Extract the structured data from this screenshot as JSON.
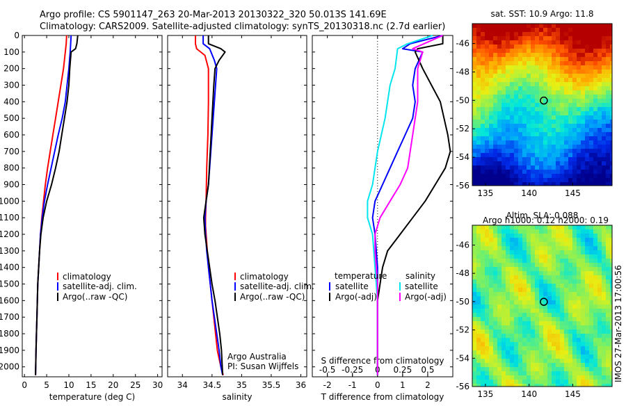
{
  "title_lines": [
    "Argo profile: CS 5901147_263 20-Mar-2013 20130322_320 50.013S 141.69E",
    "Climatology: CARS2009. Satellite-adjusted climatology: synTS_20130318.nc (2.7d earlier)"
  ],
  "colors": {
    "clim": "#ff0000",
    "sat": "#0000ff",
    "argo": "#000000",
    "sal_sat": "#00e5ee",
    "sal_argo": "#ff00ff"
  },
  "depth_axis": {
    "ticks": [
      0,
      100,
      200,
      300,
      400,
      500,
      600,
      700,
      800,
      900,
      1000,
      1100,
      1200,
      1300,
      1400,
      1500,
      1600,
      1700,
      1800,
      1900,
      2000
    ],
    "range": [
      0,
      2060
    ]
  },
  "legend_profiles": [
    "climatology",
    "satellite-adj. clim.",
    "Argo(..raw -QC)"
  ],
  "legend_diff": {
    "temp_title": "temperature",
    "sal_title": "salinity",
    "temp_items": [
      "satellite",
      "Argo(-adj)"
    ],
    "sal_items": [
      "satellite",
      "Argo(-adj)"
    ]
  },
  "credits": [
    "Argo Australia",
    "PI: Susan Wijffels"
  ],
  "imos_stamp": "IMOS 27-Mar-2013 17:00:56",
  "chart_data": [
    {
      "type": "line",
      "id": "temperature",
      "xlabel": "temperature (deg C)",
      "xlim": [
        -0.5,
        31
      ],
      "ylim": [
        2060,
        0
      ],
      "xticks": [
        0,
        5,
        10,
        15,
        20,
        25,
        30
      ],
      "series": [
        {
          "name": "climatology",
          "color": "#ff0000",
          "x": [
            9.5,
            9.4,
            9.2,
            8.8,
            8.2,
            7.6,
            7.0,
            6.4,
            5.8,
            5.2,
            4.7,
            4.3,
            3.9,
            3.6,
            3.4,
            3.2,
            3.0,
            2.9,
            2.8,
            2.7,
            2.6,
            2.5
          ],
          "y": [
            0,
            50,
            100,
            200,
            300,
            400,
            500,
            600,
            700,
            800,
            900,
            1000,
            1100,
            1200,
            1300,
            1400,
            1500,
            1600,
            1700,
            1800,
            1900,
            2050
          ]
        },
        {
          "name": "satellite-adj. clim.",
          "color": "#0000ff",
          "x": [
            10.5,
            10.4,
            10.3,
            10.0,
            9.6,
            9.2,
            8.5,
            7.6,
            6.8,
            6.0,
            5.2,
            4.5,
            4.0,
            3.6,
            3.4,
            3.2,
            3.0,
            2.9,
            2.8,
            2.7,
            2.6,
            2.5
          ],
          "y": [
            0,
            50,
            100,
            200,
            300,
            400,
            500,
            600,
            700,
            800,
            900,
            1000,
            1100,
            1200,
            1300,
            1400,
            1500,
            1600,
            1700,
            1800,
            1900,
            2050
          ]
        },
        {
          "name": "Argo(..raw -QC)",
          "color": "#000000",
          "x": [
            12.0,
            11.8,
            11.5,
            10.5,
            10.2,
            10.0,
            9.6,
            9.0,
            8.4,
            7.8,
            7.0,
            6.1,
            5.0,
            4.2,
            3.7,
            3.4,
            3.2,
            3.0,
            2.9,
            2.8,
            2.7,
            2.6,
            2.5
          ],
          "y": [
            0,
            50,
            80,
            100,
            200,
            300,
            400,
            500,
            600,
            700,
            800,
            900,
            1000,
            1100,
            1200,
            1300,
            1400,
            1500,
            1600,
            1700,
            1800,
            1900,
            2050
          ]
        }
      ]
    },
    {
      "type": "line",
      "id": "salinity",
      "xlabel": "salinity",
      "xlim": [
        33.75,
        36.1
      ],
      "ylim": [
        2060,
        0
      ],
      "xticks": [
        34,
        34.5,
        35,
        35.5,
        36
      ],
      "series": [
        {
          "name": "climatology",
          "color": "#ff0000",
          "x": [
            34.22,
            34.22,
            34.24,
            34.38,
            34.44,
            34.44,
            34.43,
            34.41,
            34.4,
            34.39,
            34.39,
            34.4,
            34.42,
            34.44,
            34.47,
            34.5,
            34.53,
            34.56,
            34.59,
            34.62,
            34.65,
            34.69
          ],
          "y": [
            0,
            50,
            80,
            120,
            200,
            400,
            600,
            800,
            1000,
            1100,
            1150,
            1200,
            1300,
            1400,
            1500,
            1600,
            1700,
            1800,
            1900,
            1950,
            2000,
            2050
          ]
        },
        {
          "name": "satellite-adj. clim.",
          "color": "#0000ff",
          "x": [
            34.35,
            34.35,
            34.46,
            34.54,
            34.58,
            34.56,
            34.52,
            34.48,
            34.44,
            34.4,
            34.38,
            34.39,
            34.41,
            34.44,
            34.47,
            34.5,
            34.54,
            34.58,
            34.62,
            34.65,
            34.68
          ],
          "y": [
            0,
            50,
            80,
            150,
            200,
            300,
            500,
            700,
            900,
            1000,
            1100,
            1200,
            1300,
            1400,
            1500,
            1600,
            1700,
            1800,
            1900,
            2000,
            2050
          ]
        },
        {
          "name": "Argo(..raw -QC)",
          "color": "#000000",
          "x": [
            34.44,
            34.44,
            34.65,
            34.72,
            34.62,
            34.55,
            34.53,
            34.5,
            34.47,
            34.44,
            34.4,
            34.36,
            34.38,
            34.42,
            34.46,
            34.5,
            34.55,
            34.59,
            34.63,
            34.66,
            34.68
          ],
          "y": [
            0,
            50,
            80,
            100,
            150,
            200,
            300,
            500,
            700,
            900,
            1000,
            1100,
            1200,
            1300,
            1400,
            1500,
            1600,
            1700,
            1800,
            1900,
            2050
          ]
        }
      ]
    },
    {
      "type": "line",
      "id": "difference",
      "xlabel": "T difference from climatology",
      "xlabel_top": "S difference from climatology",
      "xlim": [
        -2.6,
        3.0
      ],
      "ylim": [
        2060,
        0
      ],
      "xticks": [
        -2,
        -1,
        0,
        1,
        2
      ],
      "top_ticks": [
        "-0.5",
        "-0.25",
        "0",
        "0.25",
        "0.5"
      ],
      "series": [
        {
          "name": "temperature satellite",
          "color": "#0000ff",
          "x": [
            2.6,
            1.3,
            1.0,
            1.8,
            1.5,
            1.4,
            1.5,
            1.4,
            1.1,
            0.8,
            0.5,
            0.2,
            -0.1,
            -0.2,
            -0.1,
            0.0,
            0.0,
            0.0,
            0.0,
            0.0
          ],
          "y": [
            0,
            50,
            80,
            100,
            200,
            300,
            400,
            500,
            600,
            700,
            800,
            900,
            1000,
            1100,
            1200,
            1400,
            1600,
            1800,
            1900,
            2050
          ]
        },
        {
          "name": "temperature Argo(-adj)",
          "color": "#000000",
          "x": [
            2.6,
            2.6,
            1.6,
            1.5,
            1.8,
            2.5,
            2.8,
            2.9,
            2.7,
            2.3,
            1.9,
            1.4,
            0.9,
            0.4,
            0.2,
            0.1,
            0.0,
            0.0,
            0.0
          ],
          "y": [
            0,
            50,
            80,
            100,
            200,
            400,
            600,
            700,
            800,
            900,
            1000,
            1100,
            1200,
            1300,
            1400,
            1500,
            1600,
            1800,
            2050
          ]
        },
        {
          "name": "salinity satellite",
          "color": "#00e5ee",
          "x": [
            2.2,
            1.2,
            0.8,
            0.7,
            0.5,
            0.3,
            0.0,
            -0.2,
            -0.4,
            -0.4,
            -0.2,
            -0.1,
            0.0,
            0.0,
            0.0,
            0.0
          ],
          "y": [
            0,
            50,
            80,
            200,
            300,
            500,
            700,
            900,
            1000,
            1100,
            1200,
            1400,
            1600,
            1800,
            1900,
            2050
          ]
        },
        {
          "name": "salinity Argo(-adj)",
          "color": "#ff00ff",
          "x": [
            2.6,
            1.7,
            1.4,
            1.8,
            1.6,
            1.6,
            1.4,
            1.2,
            0.9,
            0.5,
            0.1,
            -0.1,
            -0.1,
            0.0,
            0.0,
            0.0
          ],
          "y": [
            0,
            60,
            80,
            100,
            200,
            400,
            600,
            800,
            900,
            1000,
            1100,
            1200,
            1300,
            1500,
            1800,
            2050
          ]
        }
      ]
    },
    {
      "type": "heatmap",
      "id": "sst_map",
      "title": "sat. SST: 10.9 Argo: 11.8",
      "xlim": [
        133.5,
        149.5
      ],
      "ylim": [
        -56,
        -44.6
      ],
      "xticks": [
        135,
        140,
        145
      ],
      "yticks": [
        -46,
        -48,
        -50,
        -52,
        -54,
        -56
      ],
      "marker": {
        "lon": 141.69,
        "lat": -50.013
      }
    },
    {
      "type": "heatmap",
      "id": "sla_map",
      "title": "Altim. SLA: 0.088",
      "subtitle": "Argo h1000: 0.12 h2000: 0.19",
      "xlim": [
        133.5,
        149.5
      ],
      "ylim": [
        -56,
        -44.6
      ],
      "xticks": [
        135,
        140,
        145
      ],
      "yticks": [
        -46,
        -48,
        -50,
        -52,
        -54,
        -56
      ],
      "marker": {
        "lon": 141.69,
        "lat": -50.013
      }
    }
  ]
}
